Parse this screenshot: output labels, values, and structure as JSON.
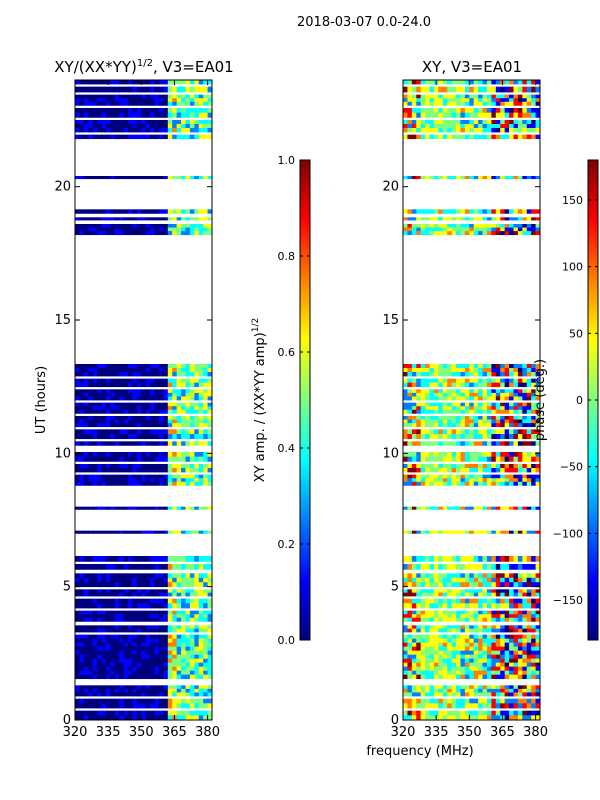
{
  "figure": {
    "suptitle": "2018-03-07 0.0-24.0",
    "xlabel": "frequency (MHz)",
    "ylabel": "UT (hours)"
  },
  "colors": {
    "jet": [
      "#00007f",
      "#0000ff",
      "#007fff",
      "#00ffff",
      "#7fff7f",
      "#ffff00",
      "#ff7f00",
      "#ff0000",
      "#7f0000"
    ]
  },
  "chart_data": [
    {
      "type": "heatmap",
      "title_main": "XY/(XX*YY)",
      "title_sup": "1/2",
      "title_tail": ", V3=EA01",
      "xlabel": "frequency (MHz)",
      "ylabel": "UT (hours)",
      "xlim": [
        320,
        382
      ],
      "ylim": [
        0,
        24
      ],
      "xticks": [
        320,
        335,
        350,
        365,
        380
      ],
      "yticks": [
        0,
        5,
        10,
        15,
        20
      ],
      "colorbar": {
        "label": "XY amp. / (XX*YY amp)",
        "label_sup": "1/2",
        "range": [
          0.0,
          1.0
        ],
        "ticks": [
          "0.0",
          "0.2",
          "0.4",
          "0.6",
          "0.8",
          "1.0"
        ],
        "values": [
          0.0,
          0.2,
          0.4,
          0.6,
          0.8,
          1.0
        ]
      },
      "freq_bands_mhz": [
        [
          320,
          360,
          "low ~0.0"
        ],
        [
          360,
          382,
          "mixed 0.3-0.6"
        ]
      ]
    },
    {
      "type": "heatmap",
      "title": "XY, V3=EA01",
      "xlim": [
        320,
        382
      ],
      "ylim": [
        0,
        24
      ],
      "xticks": [
        320,
        335,
        350,
        365,
        380
      ],
      "yticks": [
        0,
        5,
        10,
        15,
        20
      ],
      "colorbar": {
        "label": "phase (deg.)",
        "range": [
          -180,
          180
        ],
        "ticks": [
          "−150",
          "−100",
          "−50",
          "0",
          "50",
          "100",
          "150"
        ],
        "values": [
          -150,
          -100,
          -50,
          0,
          50,
          100,
          150
        ]
      }
    }
  ],
  "data_segments_ut_hours": [
    [
      0.0,
      0.35
    ],
    [
      0.45,
      0.8
    ],
    [
      0.9,
      1.3
    ],
    [
      1.55,
      3.2
    ],
    [
      3.3,
      3.55
    ],
    [
      3.7,
      4.1
    ],
    [
      4.2,
      4.55
    ],
    [
      4.65,
      4.9
    ],
    [
      5.0,
      5.5
    ],
    [
      5.65,
      5.85
    ],
    [
      5.95,
      6.15
    ],
    [
      7.0,
      7.1
    ],
    [
      7.9,
      8.0
    ],
    [
      8.8,
      9.2
    ],
    [
      9.3,
      9.6
    ],
    [
      9.7,
      10.05
    ],
    [
      10.3,
      10.45
    ],
    [
      10.55,
      10.9
    ],
    [
      11.0,
      11.4
    ],
    [
      11.5,
      11.9
    ],
    [
      12.0,
      12.4
    ],
    [
      12.5,
      12.8
    ],
    [
      12.9,
      13.35
    ],
    [
      18.2,
      18.6
    ],
    [
      18.75,
      18.85
    ],
    [
      19.0,
      19.15
    ],
    [
      20.3,
      20.4
    ],
    [
      21.8,
      21.95
    ],
    [
      22.05,
      22.5
    ],
    [
      22.6,
      22.95
    ],
    [
      23.05,
      23.45
    ],
    [
      23.55,
      23.75
    ],
    [
      23.85,
      24.0
    ]
  ]
}
